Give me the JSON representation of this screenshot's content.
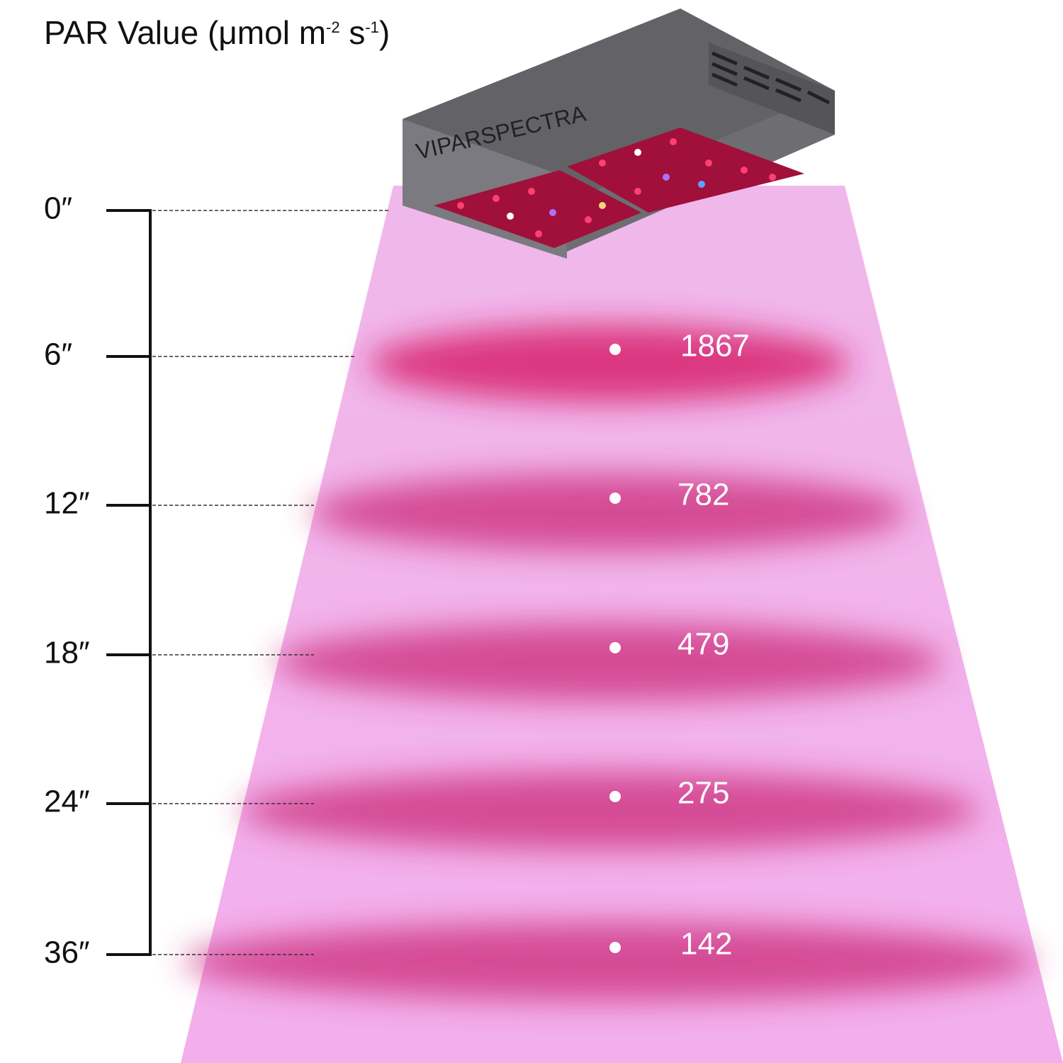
{
  "title": {
    "main": "PAR Value (μmol m",
    "sup1": "-2",
    "mid": " s",
    "sup2": "-1",
    "end": ")"
  },
  "brand": "VIPARSPECTRA",
  "start_height": "0″",
  "readings": [
    {
      "height": "6″",
      "par": 1867
    },
    {
      "height": "12″",
      "par": 782
    },
    {
      "height": "18″",
      "par": 479
    },
    {
      "height": "24″",
      "par": 275
    },
    {
      "height": "36″",
      "par": 142
    }
  ]
}
